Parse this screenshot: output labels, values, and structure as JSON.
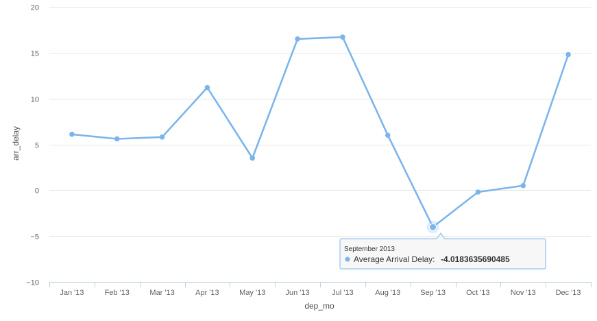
{
  "chart_data": {
    "type": "line",
    "xlabel": "dep_mo",
    "ylabel": "arr_delay",
    "ylim": [
      -10,
      20
    ],
    "yticks": [
      -10,
      -5,
      0,
      5,
      10,
      15,
      20
    ],
    "grid": true,
    "categories": [
      "Jan '13",
      "Feb '13",
      "Mar '13",
      "Apr '13",
      "May '13",
      "Jun '13",
      "Jul '13",
      "Aug '13",
      "Sep '13",
      "Oct '13",
      "Nov '13",
      "Dec '13"
    ],
    "series": [
      {
        "name": "Average Arrival Delay",
        "color": "#7cb5ec",
        "values": [
          6.1,
          5.6,
          5.8,
          11.2,
          3.5,
          16.5,
          16.7,
          6.0,
          -4.0183635690485,
          -0.2,
          0.5,
          14.8
        ]
      }
    ],
    "tooltip": {
      "title": "September 2013",
      "series_label": "Average Arrival Delay:",
      "value_text": "-4.0183635690485",
      "point_index": 8
    }
  }
}
